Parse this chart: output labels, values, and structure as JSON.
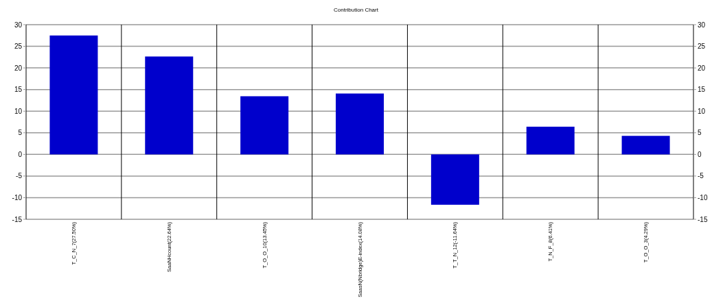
{
  "chart_data": {
    "type": "bar",
    "title": "Contribution Chart",
    "categories": [
      "T_C_N_7(27.50%)",
      "SaaNHcount(22.64%)",
      "T_O_O_10(13.45%)",
      "SaasN(Nbridge)E-index(14.08%)",
      "T_T_N_12(-11.64%)",
      "T_N_F_8(6.41%)",
      "T_O_O_3(4.29%)"
    ],
    "values": [
      27.5,
      22.64,
      13.45,
      14.08,
      -11.64,
      6.41,
      4.29
    ],
    "color": "#0000cc",
    "ylim": [
      -15,
      30
    ],
    "yticks": [
      -15,
      -10,
      -5,
      0,
      5,
      10,
      15,
      20,
      25,
      30
    ],
    "y2lim": [
      -15,
      30
    ],
    "y2ticks": [
      -15,
      -10,
      -5,
      0,
      5,
      10,
      15,
      20,
      25,
      30
    ],
    "grid": true
  }
}
